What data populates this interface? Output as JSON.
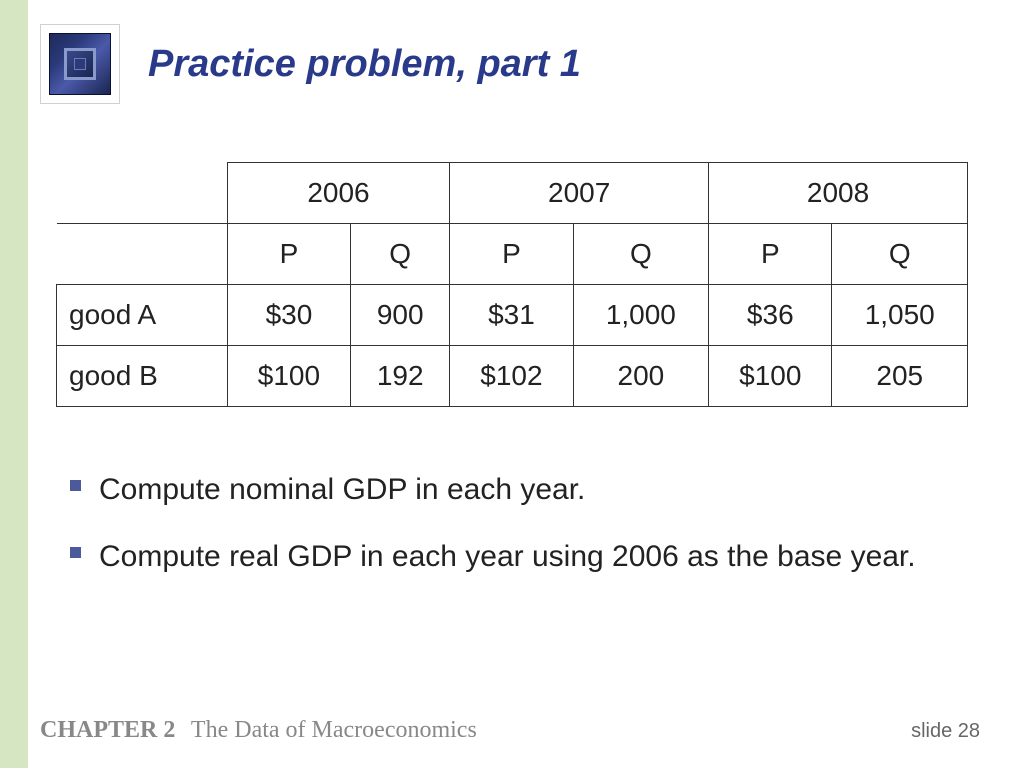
{
  "title": "Practice problem, part 1",
  "title_color": "#2a3a8a",
  "title_fontsize": 38,
  "left_strip_color": "#d6e5c2",
  "icon": {
    "outer_gradient": [
      "#1e2a5a",
      "#2a3a7a",
      "#4a5aaa",
      "#1a2550"
    ],
    "frame_color": "#8a9acc"
  },
  "table": {
    "type": "table",
    "years": [
      "2006",
      "2007",
      "2008"
    ],
    "subheaders": [
      "P",
      "Q"
    ],
    "row_labels": [
      "good A",
      "good B"
    ],
    "rows": [
      [
        "$30",
        "900",
        "$31",
        "1,000",
        "$36",
        "1,050"
      ],
      [
        "$100",
        "192",
        "$102",
        "200",
        "$100",
        "205"
      ]
    ],
    "border_color": "#333333",
    "cell_fontsize": 28,
    "text_color": "#222222"
  },
  "bullets": {
    "marker_color": "#4a5a9a",
    "fontsize": 30,
    "items": [
      "Compute nominal GDP in each year.",
      "Compute real GDP in each year using 2006 as the base year."
    ]
  },
  "footer": {
    "chapter_label": "CHAPTER 2",
    "chapter_title": "The Data of Macroeconomics",
    "slide_label": "slide 28",
    "color": "#888888",
    "fontsize": 24
  }
}
